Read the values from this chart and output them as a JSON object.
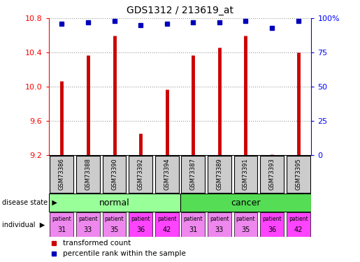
{
  "title": "GDS1312 / 213619_at",
  "samples": [
    "GSM73386",
    "GSM73388",
    "GSM73390",
    "GSM73392",
    "GSM73394",
    "GSM73387",
    "GSM73389",
    "GSM73391",
    "GSM73393",
    "GSM73395"
  ],
  "transformed_count": [
    10.07,
    10.37,
    10.6,
    9.46,
    9.97,
    10.37,
    10.46,
    10.6,
    9.21,
    10.4
  ],
  "percentile_rank": [
    96,
    97,
    98,
    95,
    96,
    97,
    97,
    98,
    93,
    98
  ],
  "y_min": 9.2,
  "y_max": 10.8,
  "y_ticks": [
    9.2,
    9.6,
    10.0,
    10.4,
    10.8
  ],
  "right_y_ticks": [
    0,
    25,
    50,
    75,
    100
  ],
  "right_y_labels": [
    "0",
    "25",
    "50",
    "75",
    "100%"
  ],
  "disease_state_labels": [
    "normal",
    "cancer"
  ],
  "normal_color": "#99FF99",
  "cancer_color": "#55DD55",
  "individual": [
    "31",
    "33",
    "35",
    "36",
    "42",
    "31",
    "33",
    "35",
    "36",
    "42"
  ],
  "indiv_colors": [
    "#EE88EE",
    "#EE88EE",
    "#EE88EE",
    "#FF44FF",
    "#FF44FF",
    "#EE88EE",
    "#EE88EE",
    "#EE88EE",
    "#FF44FF",
    "#FF44FF"
  ],
  "bar_color": "#CC0000",
  "dot_color": "#0000BB",
  "sample_box_color": "#CCCCCC",
  "grid_color": "#999999"
}
